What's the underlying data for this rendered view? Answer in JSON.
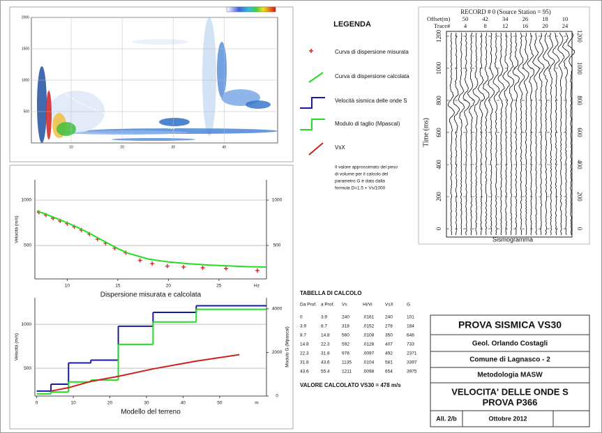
{
  "chart_data": [
    {
      "type": "spectrogram",
      "xlim": [
        2.2,
        50.5
      ],
      "ylim": [
        0,
        2000
      ],
      "xticks": [
        10,
        20,
        30,
        40
      ],
      "yticks": [
        500,
        1000,
        1500,
        2000
      ],
      "grid": true
    },
    {
      "type": "seismogram",
      "title": "RECORD # 0 (Source Station = 95)",
      "offset_label": "Offset(m)",
      "offsets": [
        50,
        42,
        34,
        26,
        18,
        10
      ],
      "trace_label": "Trace#",
      "traces": [
        4,
        8,
        12,
        16,
        20,
        24
      ],
      "ylabel": "Time (ms)",
      "xlabel": "Sismogramma",
      "ylim": [
        -52,
        1230
      ],
      "yticks": [
        0,
        200,
        400,
        600,
        800,
        1000,
        1200
      ],
      "grid": true
    },
    {
      "type": "line",
      "xlabel": "Dispersione misurata e calcolata",
      "xunit": "Hz",
      "ylabel": "Velocità (m/s)",
      "xlim": [
        6.8,
        29.7
      ],
      "ylim": [
        131,
        1223
      ],
      "y2lim": [
        131,
        1223
      ],
      "xticks": [
        10,
        15,
        20,
        25
      ],
      "yticks": [
        500,
        1000
      ],
      "y2ticks": [
        500,
        1000
      ],
      "grid": true,
      "series": [
        {
          "color": "#e02020",
          "marker": "+",
          "x": [
            7.2,
            7.9,
            8.6,
            9.3,
            10.0,
            10.7,
            11.4,
            12.2,
            13.0,
            13.8,
            14.7,
            15.8,
            17.2,
            18.4,
            19.9,
            21.5,
            23.4,
            25.7,
            28.8
          ],
          "values": [
            865,
            835,
            800,
            770,
            740,
            705,
            670,
            625,
            570,
            525,
            470,
            420,
            335,
            300,
            272,
            262,
            254,
            245,
            223
          ]
        },
        {
          "color": "#22dd22",
          "x": [
            7,
            8,
            9,
            10,
            11,
            12,
            13,
            14,
            15,
            16,
            18,
            20,
            22,
            24,
            26,
            28,
            29.7
          ],
          "values": [
            880,
            840,
            795,
            750,
            700,
            645,
            585,
            525,
            465,
            415,
            350,
            318,
            298,
            284,
            274,
            266,
            262
          ]
        }
      ]
    },
    {
      "type": "step",
      "xlabel": "Modello del terreno",
      "xunit": "m",
      "ylabel": "Velocità (m/s)",
      "y2label": "Modulo G (Mpascal)",
      "xlim": [
        -0.5,
        62.8
      ],
      "ylim": [
        183,
        1302
      ],
      "y2lim": [
        0,
        4508
      ],
      "xticks": [
        0,
        10,
        20,
        30,
        40,
        50
      ],
      "yticks": [
        500,
        1000
      ],
      "y2ticks": [
        0,
        2000,
        4000
      ],
      "grid": true,
      "series": [
        {
          "color": "#1a1aa0",
          "step": true,
          "x": [
            0,
            3.9,
            8.7,
            14.8,
            22.3,
            31.8,
            43.6
          ],
          "values": [
            240,
            318,
            560,
            592,
            978,
            1135,
            1211
          ]
        },
        {
          "color": "#22dd22",
          "step": true,
          "axis": "y2",
          "x": [
            0,
            3.9,
            8.7,
            14.8,
            22.3,
            31.8,
            43.6
          ],
          "values": [
            101,
            184,
            646,
            733,
            2371,
            3397,
            3975
          ]
        },
        {
          "color": "#cc2020",
          "x": [
            3.9,
            8.7,
            14.8,
            22.3,
            31.8,
            43.6,
            55.4
          ],
          "values": [
            240,
            278,
            350,
            407,
            492,
            581,
            654
          ]
        }
      ]
    }
  ],
  "legend": {
    "title": "LEGENDA",
    "items": [
      "Curva di dispersione misurata",
      "Curva di dispersione calcolata",
      "Velocità sismica delle onde S",
      "Modulo di taglio (Mpascal)",
      "VsX"
    ],
    "note": [
      "Il valore approssimato del peso",
      "di volume per il calcolo del",
      "parametro G è dato dalla",
      "formula D=1.5 + Vs/1000"
    ]
  },
  "table": {
    "title": "TABELLA DI CALCOLO",
    "headers": [
      "Da Prof.",
      "a Prof.",
      "Vs",
      "Hi/Vi",
      "VsX",
      "G"
    ],
    "rows": [
      [
        "0",
        "3.9",
        "240",
        ".0161",
        "240",
        "101"
      ],
      [
        "3.9",
        "8.7",
        "318",
        ".0152",
        "278",
        "184"
      ],
      [
        "8.7",
        "14.8",
        "560",
        ".0108",
        "350",
        "646"
      ],
      [
        "14.8",
        "22.3",
        "592",
        ".0128",
        "407",
        "733"
      ],
      [
        "22.3",
        "31.8",
        "978",
        ".0097",
        "492",
        "2371"
      ],
      [
        "31.8",
        "43.6",
        "1135",
        ".0104",
        "581",
        "3397"
      ],
      [
        "43.6",
        "55.4",
        "1211",
        ".0098",
        "654",
        "3975"
      ]
    ],
    "result": "VALORE CALCOLATO VS30 =  478 m/s"
  },
  "title_block": {
    "title": "PROVA SISMICA VS30",
    "author": "Geol. Orlando Costagli",
    "site": "Comune di Lagnasco - 2",
    "method": "Metodologia MASW",
    "subject": [
      "VELOCITA' DELLE ONDE S",
      "PROVA P366"
    ],
    "attachment": "All. 2/b",
    "date": "Ottobre 2012"
  }
}
